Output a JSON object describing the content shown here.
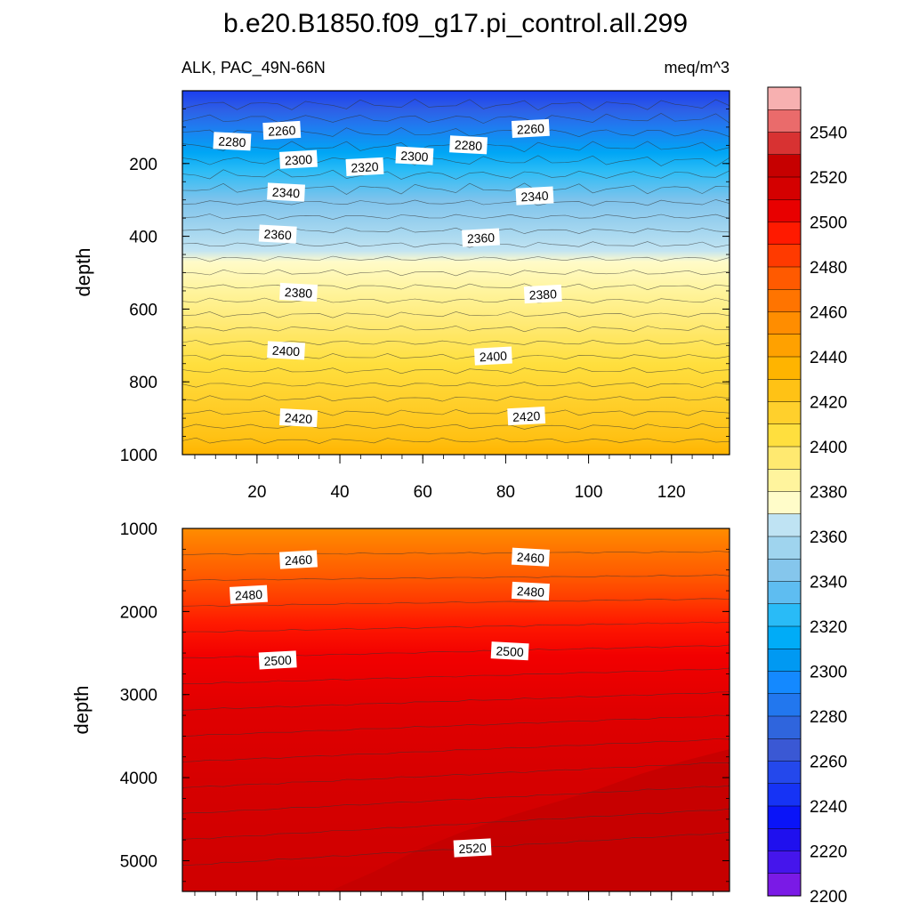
{
  "chart_data": {
    "type": "contour",
    "title": "b.e20.B1850.f09_g17.pi_control.all.299",
    "variable_label": "ALK, PAC_49N-66N",
    "units": "meq/m^3",
    "x_ticks": [
      "20",
      "40",
      "60",
      "80",
      "100",
      "120"
    ],
    "x_range": [
      2,
      134
    ],
    "panels": [
      {
        "name": "upper",
        "ylabel": "depth",
        "ylim": [
          0,
          1000
        ],
        "y_ticks": [
          "200",
          "400",
          "600",
          "800",
          "1000"
        ],
        "contour_labels": [
          {
            "text": "2260",
            "x": 26,
            "depth": 110
          },
          {
            "text": "2280",
            "x": 14,
            "depth": 140
          },
          {
            "text": "2260",
            "x": 86,
            "depth": 105
          },
          {
            "text": "2280",
            "x": 71,
            "depth": 150
          },
          {
            "text": "2300",
            "x": 30,
            "depth": 190
          },
          {
            "text": "2300",
            "x": 58,
            "depth": 180
          },
          {
            "text": "2320",
            "x": 46,
            "depth": 210
          },
          {
            "text": "2340",
            "x": 27,
            "depth": 280
          },
          {
            "text": "2340",
            "x": 87,
            "depth": 290
          },
          {
            "text": "2360",
            "x": 25,
            "depth": 395
          },
          {
            "text": "2360",
            "x": 74,
            "depth": 405
          },
          {
            "text": "2380",
            "x": 30,
            "depth": 555
          },
          {
            "text": "2380",
            "x": 89,
            "depth": 560
          },
          {
            "text": "2400",
            "x": 27,
            "depth": 715
          },
          {
            "text": "2400",
            "x": 77,
            "depth": 730
          },
          {
            "text": "2420",
            "x": 30,
            "depth": 900
          },
          {
            "text": "2420",
            "x": 85,
            "depth": 895
          }
        ]
      },
      {
        "name": "lower",
        "ylabel": "depth",
        "ylim": [
          1000,
          5370
        ],
        "y_ticks": [
          "1000",
          "2000",
          "3000",
          "4000",
          "5000"
        ],
        "contour_labels": [
          {
            "text": "2460",
            "x": 30,
            "depth": 1380
          },
          {
            "text": "2460",
            "x": 86,
            "depth": 1350
          },
          {
            "text": "2480",
            "x": 18,
            "depth": 1800
          },
          {
            "text": "2480",
            "x": 86,
            "depth": 1760
          },
          {
            "text": "2500",
            "x": 25,
            "depth": 2590
          },
          {
            "text": "2500",
            "x": 81,
            "depth": 2480
          },
          {
            "text": "2520",
            "x": 72,
            "depth": 4850
          }
        ]
      }
    ],
    "colorbar": {
      "levels": [
        "2540",
        "2520",
        "2500",
        "2480",
        "2460",
        "2440",
        "2420",
        "2400",
        "2380",
        "2360",
        "2340",
        "2320",
        "2300",
        "2280",
        "2260",
        "2240",
        "2220",
        "2200"
      ],
      "colors": [
        "#f7b0b0",
        "#ea6b6b",
        "#d83232",
        "#c60000",
        "#d40000",
        "#e80000",
        "#ff1a00",
        "#ff3a00",
        "#ff5a00",
        "#ff7400",
        "#ff8d00",
        "#ffa100",
        "#ffb400",
        "#ffc215",
        "#ffd02c",
        "#ffdf3e",
        "#ffe970",
        "#fff49d",
        "#fffcc9",
        "#bfe3f3",
        "#9fd4ee",
        "#85c6ec",
        "#5ebdf1",
        "#29bbf7",
        "#00acf7",
        "#0099f2",
        "#1489ff",
        "#2277ee",
        "#2f65dd",
        "#3a58d4",
        "#2448ec",
        "#1633f5",
        "#0a14f8",
        "#1f10ee",
        "#4515ec",
        "#7a1ae6"
      ]
    }
  }
}
